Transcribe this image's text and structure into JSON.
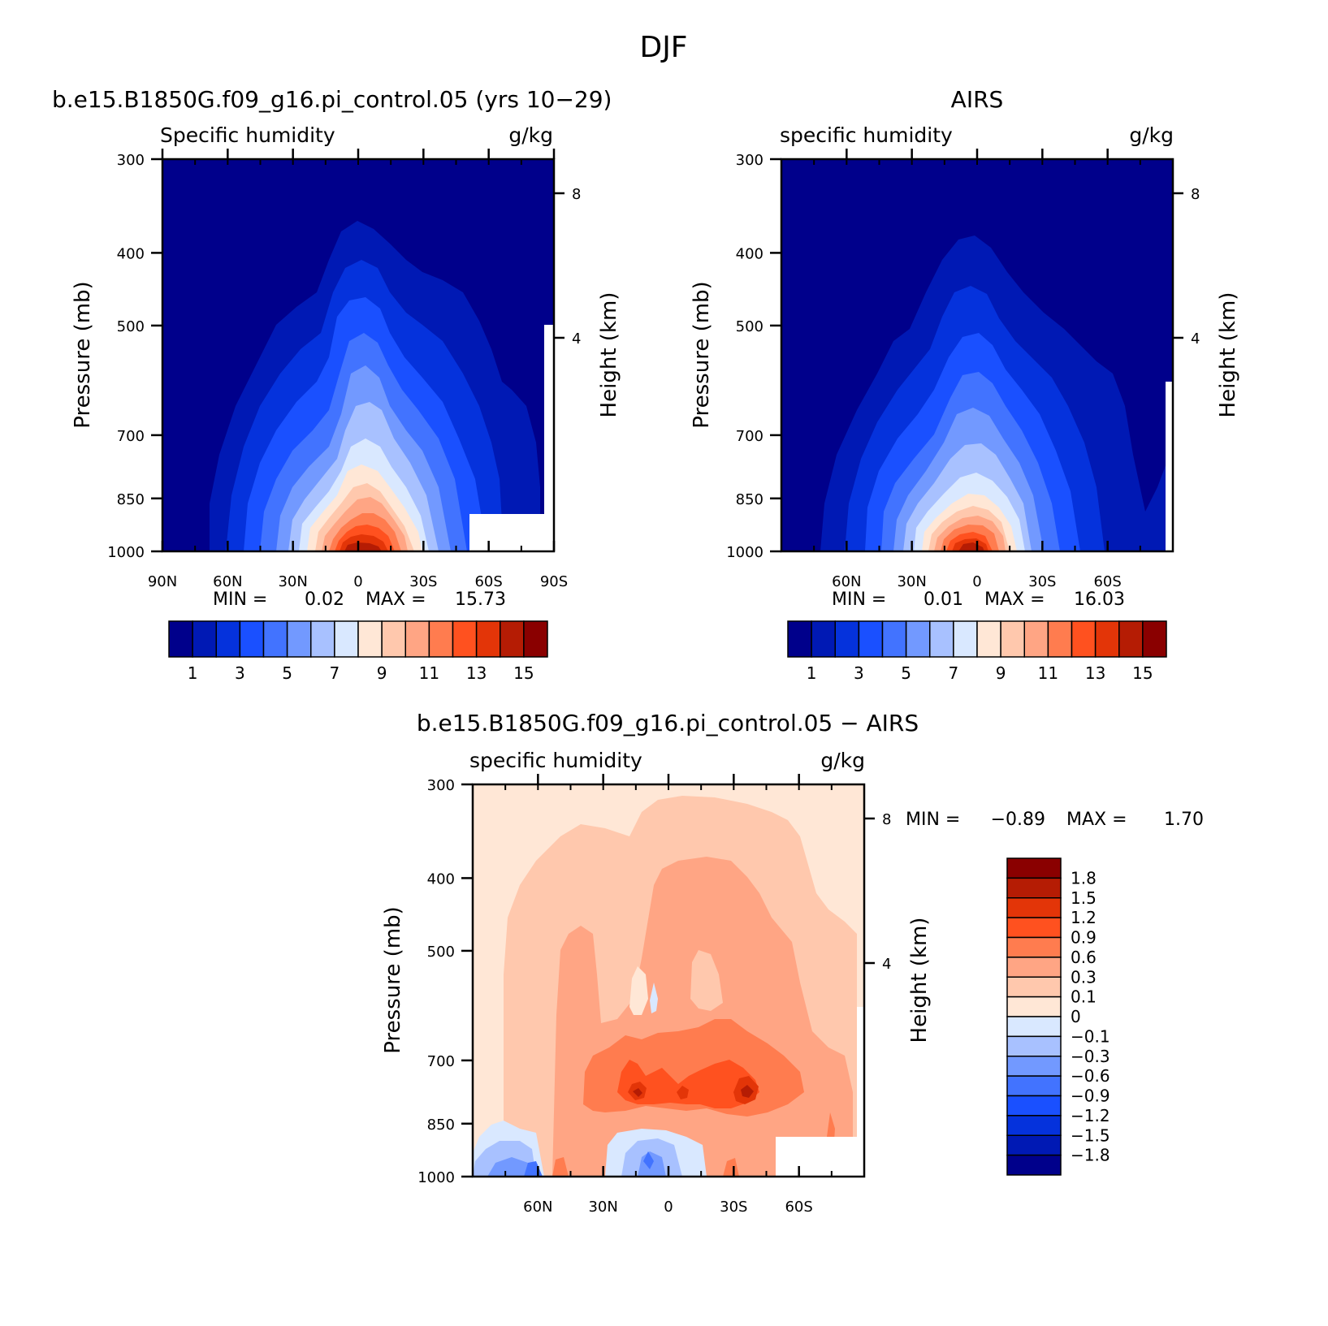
{
  "figure_title": "DJF",
  "chart_data": [
    {
      "type": "heatmap",
      "title": "b.e15.B1850G.f09_g16.pi_control.05 (yrs 10−29)",
      "subtitle_left": "Specific humidity",
      "subtitle_right": "g/kg",
      "ylabel": "Pressure (mb)",
      "ylabel_right": "Height (km)",
      "x_ticks": [
        "90N",
        "60N",
        "30N",
        "0",
        "30S",
        "60S",
        "90S"
      ],
      "y_ticks": [
        "300",
        "400",
        "500",
        "700",
        "850",
        "1000"
      ],
      "y_right_ticks": [
        "8",
        "4"
      ],
      "min_label": "MIN =",
      "min_value": "0.02",
      "max_label": "MAX =",
      "max_value": "15.73",
      "colorbar_labels": [
        "1",
        "3",
        "5",
        "7",
        "9",
        "11",
        "13",
        "15"
      ]
    },
    {
      "type": "heatmap",
      "title": "AIRS",
      "subtitle_left": "specific humidity",
      "subtitle_right": "g/kg",
      "ylabel": "Pressure (mb)",
      "ylabel_right": "Height (km)",
      "x_ticks": [
        "60N",
        "30N",
        "0",
        "30S",
        "60S"
      ],
      "y_ticks": [
        "300",
        "400",
        "500",
        "700",
        "850",
        "1000"
      ],
      "y_right_ticks": [
        "8",
        "4"
      ],
      "min_label": "MIN =",
      "min_value": "0.01",
      "max_label": "MAX =",
      "max_value": "16.03",
      "colorbar_labels": [
        "1",
        "3",
        "5",
        "7",
        "9",
        "11",
        "13",
        "15"
      ]
    },
    {
      "type": "heatmap",
      "title": "b.e15.B1850G.f09_g16.pi_control.05 − AIRS",
      "subtitle_left": "specific humidity",
      "subtitle_right": "g/kg",
      "ylabel": "Pressure (mb)",
      "ylabel_right": "Height (km)",
      "x_ticks": [
        "60N",
        "30N",
        "0",
        "30S",
        "60S"
      ],
      "y_ticks": [
        "300",
        "400",
        "500",
        "700",
        "850",
        "1000"
      ],
      "y_right_ticks": [
        "8",
        "4"
      ],
      "min_label": "MIN =",
      "min_value": "−0.89",
      "max_label": "MAX =",
      "max_value": "1.70",
      "colorbar_labels": [
        "1.8",
        "1.5",
        "1.2",
        "0.9",
        "0.6",
        "0.3",
        "0.1",
        "0",
        "−0.1",
        "−0.3",
        "−0.6",
        "−0.9",
        "−1.2",
        "−1.5",
        "−1.8"
      ]
    }
  ],
  "colors": {
    "humidity_scale": [
      "#00008b",
      "#0019b4",
      "#0532dc",
      "#1a50ff",
      "#4273ff",
      "#7299ff",
      "#a8c1ff",
      "#d9e8ff",
      "#ffe7d6",
      "#ffc8ad",
      "#ffa584",
      "#ff7c4f",
      "#ff511f",
      "#e33508",
      "#b51c04",
      "#8a0000"
    ],
    "difference_scale": [
      "#8a0000",
      "#b51c04",
      "#e33508",
      "#ff511f",
      "#ff7c4f",
      "#ffa584",
      "#ffc8ad",
      "#ffe7d6",
      "#d9e8ff",
      "#a8c1ff",
      "#7299ff",
      "#4273ff",
      "#1a50ff",
      "#0532dc",
      "#0019b4",
      "#00008b"
    ]
  }
}
